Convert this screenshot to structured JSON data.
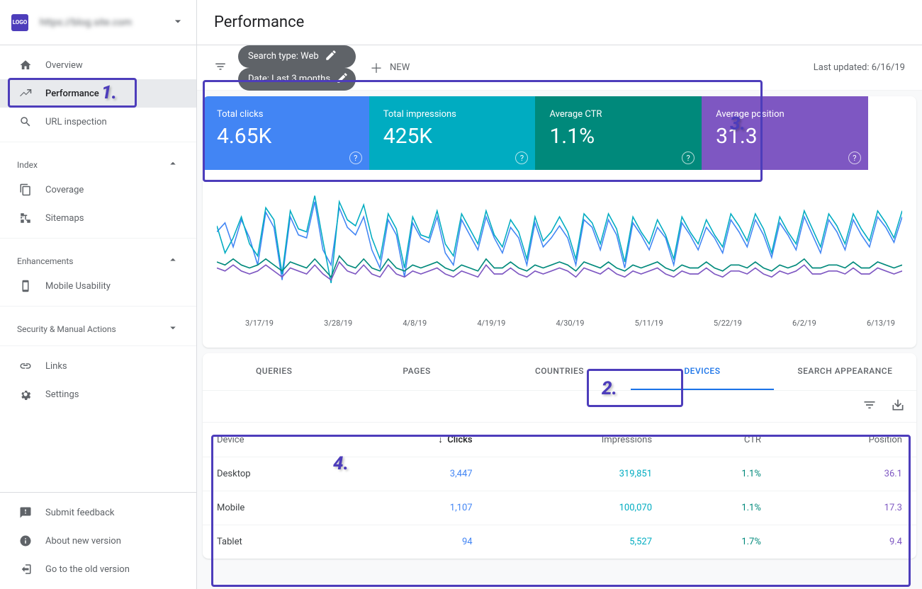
{
  "site": {
    "logo_text": "LOGO",
    "name": "https://blog.site.com",
    "blurred": true
  },
  "sidebar": {
    "top": [
      {
        "icon": "home",
        "label": "Overview"
      },
      {
        "icon": "trending",
        "label": "Performance",
        "active": true
      },
      {
        "icon": "search",
        "label": "URL inspection"
      }
    ],
    "sections": [
      {
        "title": "Index",
        "expanded": true,
        "items": [
          {
            "icon": "copy",
            "label": "Coverage"
          },
          {
            "icon": "sitemap",
            "label": "Sitemaps"
          }
        ]
      },
      {
        "title": "Enhancements",
        "expanded": true,
        "items": [
          {
            "icon": "phone",
            "label": "Mobile Usability"
          }
        ]
      },
      {
        "title": "Security & Manual Actions",
        "expanded": false,
        "items": []
      }
    ],
    "loose": [
      {
        "icon": "links",
        "label": "Links"
      },
      {
        "icon": "gear",
        "label": "Settings"
      }
    ],
    "footer": [
      {
        "icon": "feedback",
        "label": "Submit feedback"
      },
      {
        "icon": "info",
        "label": "About new version"
      },
      {
        "icon": "exit",
        "label": "Go to the old version"
      }
    ]
  },
  "page_title": "Performance",
  "filters": {
    "chips": [
      {
        "label": "Search type: Web"
      },
      {
        "label": "Date: Last 3 months"
      }
    ],
    "new_label": "NEW",
    "last_updated": "Last updated: 6/16/19"
  },
  "metrics": [
    {
      "label": "Total clicks",
      "value": "4.65K",
      "color": "#4285f4"
    },
    {
      "label": "Total impressions",
      "value": "425K",
      "color": "#00acc1"
    },
    {
      "label": "Average CTR",
      "value": "1.1%",
      "color": "#00897b"
    },
    {
      "label": "Average position",
      "value": "31.3",
      "color": "#7e57c2"
    }
  ],
  "chart": {
    "type": "line",
    "background_color": "#ffffff",
    "x_labels": [
      "3/17/19",
      "3/28/19",
      "4/8/19",
      "4/19/19",
      "4/30/19",
      "5/11/19",
      "5/22/19",
      "6/2/19",
      "6/13/19"
    ],
    "series": [
      {
        "name": "clicks",
        "color": "#4285f4",
        "line_width": 1.5,
        "points": [
          52,
          58,
          42,
          60,
          48,
          30,
          65,
          55,
          20,
          62,
          50,
          48,
          72,
          40,
          30,
          68,
          55,
          50,
          62,
          40,
          28,
          60,
          50,
          22,
          58,
          48,
          45,
          62,
          38,
          30,
          60,
          50,
          40,
          62,
          48,
          38,
          55,
          48,
          30,
          58,
          42,
          48,
          56,
          48,
          30,
          60,
          55,
          40,
          60,
          50,
          28,
          58,
          50,
          40,
          55,
          48,
          30,
          58,
          50,
          40,
          55,
          48,
          38,
          60,
          52,
          42,
          60,
          50,
          35,
          58,
          50,
          40,
          62,
          50,
          38,
          60,
          52,
          40,
          60,
          50,
          42,
          62,
          55,
          45,
          62
        ]
      },
      {
        "name": "impressions",
        "color": "#00acc1",
        "line_width": 1.5,
        "points": [
          56,
          38,
          48,
          62,
          44,
          36,
          68,
          60,
          24,
          66,
          54,
          52,
          76,
          46,
          18,
          72,
          60,
          56,
          70,
          48,
          34,
          64,
          54,
          28,
          62,
          50,
          48,
          66,
          44,
          36,
          64,
          54,
          44,
          66,
          50,
          42,
          60,
          52,
          34,
          62,
          46,
          52,
          62,
          52,
          34,
          64,
          58,
          44,
          64,
          54,
          32,
          62,
          52,
          44,
          60,
          50,
          34,
          62,
          52,
          44,
          60,
          50,
          42,
          64,
          56,
          46,
          64,
          54,
          38,
          62,
          52,
          44,
          66,
          54,
          42,
          64,
          56,
          44,
          64,
          54,
          46,
          66,
          58,
          48,
          66
        ]
      },
      {
        "name": "ctr",
        "color": "#00897b",
        "line_width": 1.5,
        "points": [
          32,
          30,
          34,
          30,
          28,
          30,
          34,
          30,
          26,
          32,
          30,
          28,
          34,
          28,
          22,
          36,
          30,
          28,
          34,
          28,
          26,
          34,
          28,
          26,
          30,
          28,
          30,
          32,
          28,
          26,
          30,
          28,
          26,
          34,
          28,
          28,
          32,
          28,
          26,
          30,
          28,
          30,
          32,
          30,
          26,
          32,
          30,
          28,
          32,
          28,
          26,
          30,
          28,
          30,
          32,
          28,
          26,
          30,
          28,
          28,
          32,
          28,
          26,
          30,
          30,
          28,
          32,
          28,
          26,
          30,
          28,
          30,
          34,
          28,
          28,
          30,
          30,
          28,
          32,
          28,
          28,
          32,
          30,
          28,
          30
        ]
      },
      {
        "name": "position",
        "color": "#7e57c2",
        "line_width": 1.5,
        "points": [
          28,
          26,
          30,
          26,
          24,
          26,
          30,
          26,
          22,
          28,
          26,
          24,
          30,
          24,
          20,
          32,
          26,
          24,
          30,
          24,
          22,
          30,
          24,
          22,
          26,
          24,
          26,
          28,
          24,
          22,
          26,
          24,
          22,
          30,
          24,
          24,
          28,
          24,
          22,
          26,
          24,
          26,
          28,
          26,
          22,
          28,
          26,
          24,
          28,
          24,
          22,
          26,
          24,
          26,
          28,
          24,
          22,
          26,
          24,
          24,
          28,
          24,
          22,
          26,
          26,
          24,
          28,
          24,
          22,
          26,
          24,
          26,
          30,
          24,
          24,
          26,
          26,
          24,
          28,
          24,
          24,
          28,
          26,
          24,
          26
        ]
      }
    ]
  },
  "tabs": [
    {
      "label": "QUERIES"
    },
    {
      "label": "PAGES"
    },
    {
      "label": "COUNTRIES"
    },
    {
      "label": "DEVICES",
      "active": true
    },
    {
      "label": "SEARCH APPEARANCE"
    }
  ],
  "table": {
    "columns": [
      "Device",
      "Clicks",
      "Impressions",
      "CTR",
      "Position"
    ],
    "sort_column": 1,
    "sort_dir": "desc",
    "rows": [
      [
        "Desktop",
        "3,447",
        "319,851",
        "1.1%",
        "36.1"
      ],
      [
        "Mobile",
        "1,107",
        "100,070",
        "1.1%",
        "17.3"
      ],
      [
        "Tablet",
        "94",
        "5,527",
        "1.7%",
        "9.4"
      ]
    ]
  },
  "annotations": {
    "1": "1.",
    "2": "2.",
    "3": "3.",
    "4": "4."
  }
}
